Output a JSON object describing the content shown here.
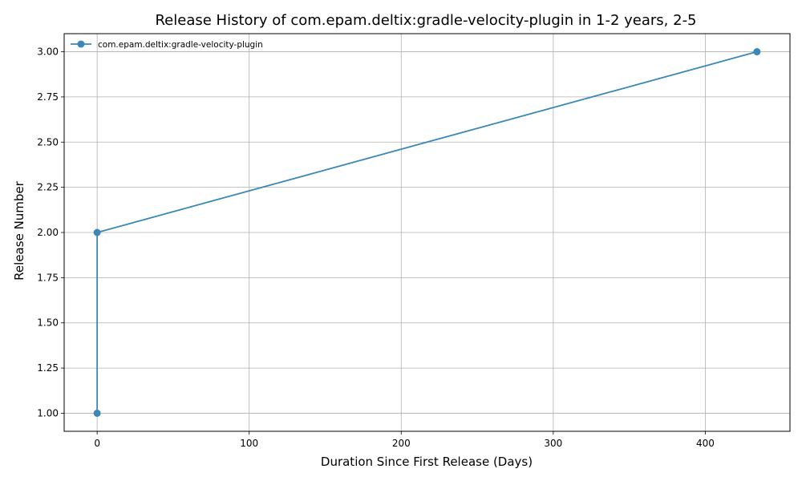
{
  "chart_data": {
    "type": "line",
    "title": "Release History of com.epam.deltix:gradle-velocity-plugin in 1-2 years, 2-5",
    "xlabel": "Duration Since First Release (Days)",
    "ylabel": "Release Number",
    "xlim": [
      -21.7,
      455.7
    ],
    "ylim": [
      0.9,
      3.1
    ],
    "x_ticks": [
      0,
      100,
      200,
      300,
      400
    ],
    "y_ticks": [
      1.0,
      1.25,
      1.5,
      1.75,
      2.0,
      2.25,
      2.5,
      2.75,
      3.0
    ],
    "x_tick_labels": [
      "0",
      "100",
      "200",
      "300",
      "400"
    ],
    "y_tick_labels": [
      "1.00",
      "1.25",
      "1.50",
      "1.75",
      "2.00",
      "2.25",
      "2.50",
      "2.75",
      "3.00"
    ],
    "grid": true,
    "legend_position": "top-left",
    "series": [
      {
        "name": "com.epam.deltix:gradle-velocity-plugin",
        "color": "#3a87b8",
        "marker": "circle",
        "x": [
          0,
          0,
          434
        ],
        "y": [
          1,
          2,
          3
        ]
      }
    ]
  }
}
